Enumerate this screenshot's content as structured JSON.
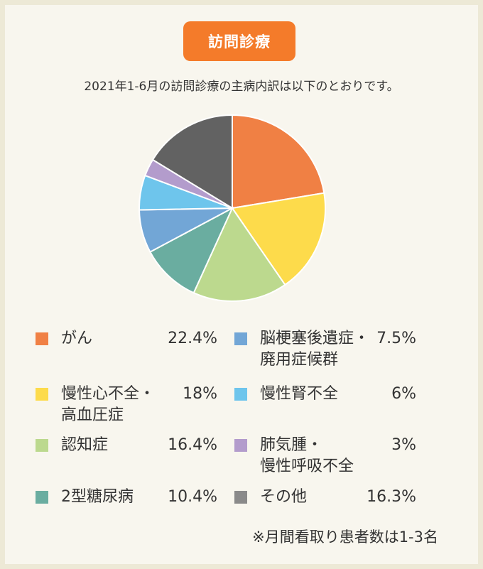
{
  "badge": {
    "label": "訪問診療",
    "color": "#f47b2a"
  },
  "subtitle": "2021年1-6月の訪問診療の主病内訳は以下のとおりです。",
  "chart_data": {
    "type": "pie",
    "slices": [
      {
        "name": "がん",
        "line2": "",
        "value": 22.4,
        "pct_label": "22.4%",
        "color": "#f08044"
      },
      {
        "name": "慢性心不全・",
        "line2": "高血圧症",
        "value": 18,
        "pct_label": "18%",
        "color": "#fddb4b"
      },
      {
        "name": "認知症",
        "line2": "",
        "value": 16.4,
        "pct_label": "16.4%",
        "color": "#bcd98e"
      },
      {
        "name": "2型糖尿病",
        "line2": "",
        "value": 10.4,
        "pct_label": "10.4%",
        "color": "#6aada0"
      },
      {
        "name": "脳梗塞後遺症・",
        "line2": "廃用症候群",
        "value": 7.5,
        "pct_label": "7.5%",
        "color": "#72a6d6"
      },
      {
        "name": "慢性腎不全",
        "line2": "",
        "value": 6,
        "pct_label": "6%",
        "color": "#6ec5ec"
      },
      {
        "name": "肺気腫・",
        "line2": "慢性呼吸不全",
        "value": 3,
        "pct_label": "3%",
        "color": "#b39ccc"
      },
      {
        "name": "その他",
        "line2": "",
        "value": 16.3,
        "pct_label": "16.3%",
        "color": "#626262"
      }
    ]
  },
  "legend_swatch_colors": [
    "#f08044",
    "#fddb4b",
    "#bcd98e",
    "#6aada0",
    "#72a6d6",
    "#6ec5ec",
    "#b39ccc",
    "#8a8a8a"
  ],
  "note": "※月間看取り患者数は1-3名"
}
